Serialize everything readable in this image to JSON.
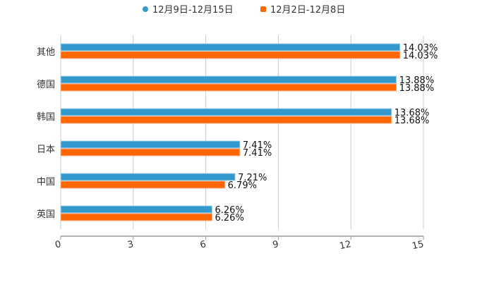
{
  "chart_data": {
    "type": "bar",
    "orientation": "horizontal",
    "title": "",
    "xlabel": "",
    "ylabel": "",
    "xlim": [
      0,
      15
    ],
    "xticks": [
      "0",
      "3",
      "6",
      "9",
      "12",
      "15"
    ],
    "xtick_values": [
      0,
      3,
      6,
      9,
      12,
      15
    ],
    "grid": true,
    "legend_position": "top-center",
    "categories": [
      "其他",
      "德国",
      "韩国",
      "日本",
      "中国",
      "英国"
    ],
    "series": [
      {
        "name": "12月9日-12月15日",
        "color": "#3399cc",
        "values": [
          14.03,
          13.88,
          13.68,
          7.41,
          7.21,
          6.26
        ],
        "labels": [
          "14.03%",
          "13.88%",
          "13.68%",
          "7.41%",
          "7.21%",
          "6.26%"
        ]
      },
      {
        "name": "12月2日-12月8日",
        "color": "#ff6600",
        "values": [
          14.03,
          13.88,
          13.68,
          7.41,
          6.79,
          6.26
        ],
        "labels": [
          "14.03%",
          "13.88%",
          "13.68%",
          "7.41%",
          "6.79%",
          "6.26%"
        ]
      }
    ]
  }
}
